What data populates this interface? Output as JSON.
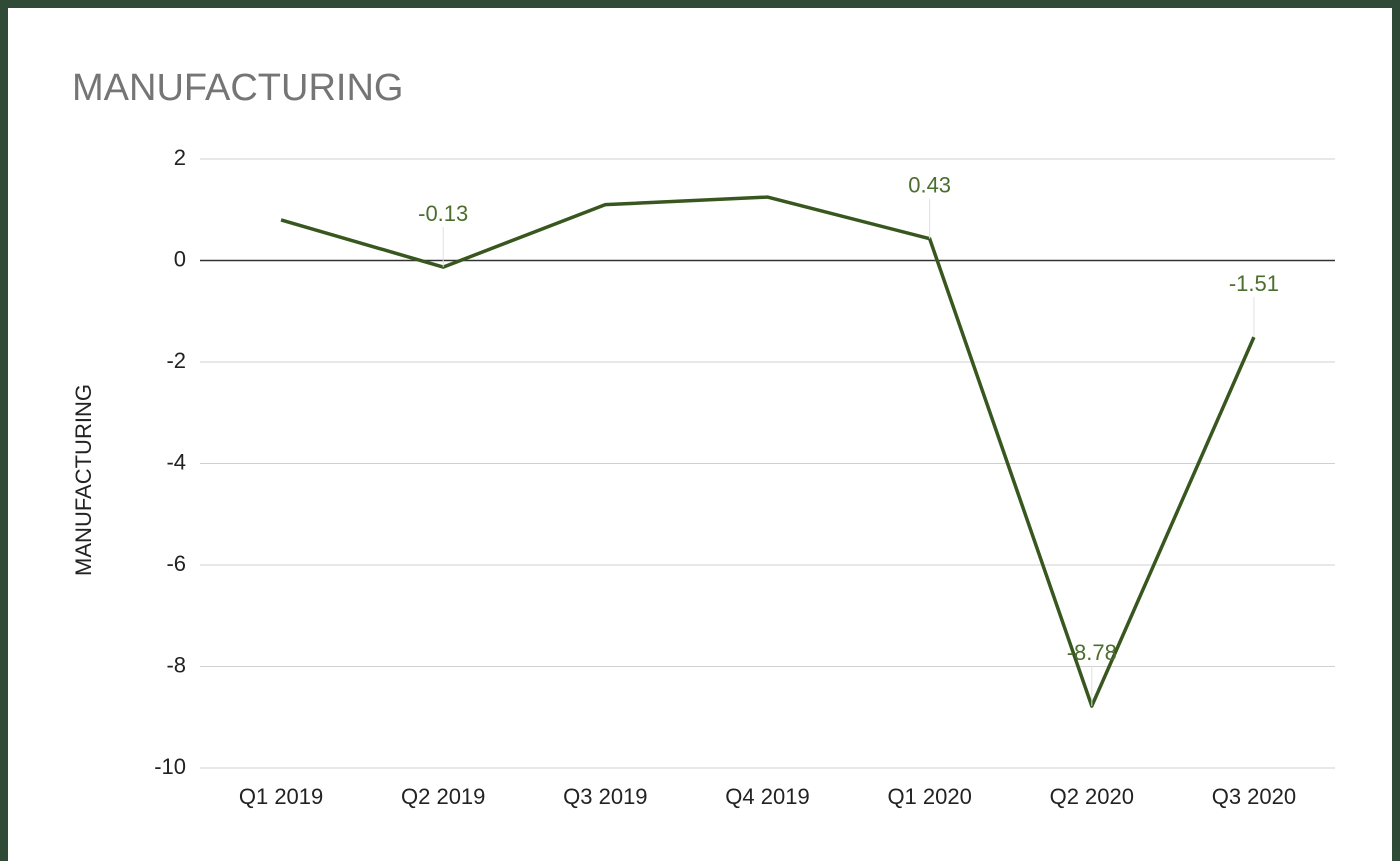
{
  "chart_data": {
    "type": "line",
    "title": "MANUFACTURING",
    "y_label": "MANUFACTURING",
    "categories": [
      "Q1 2019",
      "Q2 2019",
      "Q3 2019",
      "Q4 2019",
      "Q1 2020",
      "Q2 2020",
      "Q3 2020"
    ],
    "series": [
      {
        "name": "MANUFACTURING",
        "color": "#38571f",
        "values": [
          0.8,
          -0.13,
          1.1,
          1.25,
          0.43,
          -8.78,
          -1.51
        ],
        "value_labels": [
          null,
          "-0.13",
          null,
          null,
          "0.43",
          "-8.78",
          "-1.51"
        ]
      }
    ],
    "ylim": [
      -10,
      2
    ],
    "yticks": [
      -10,
      -8,
      -6,
      -4,
      -2,
      0,
      2
    ],
    "grid": true
  }
}
